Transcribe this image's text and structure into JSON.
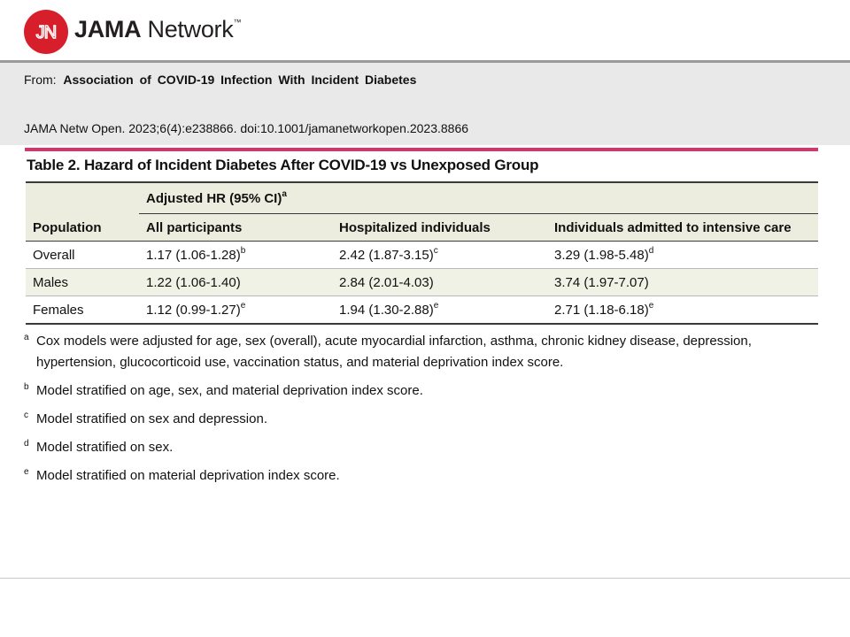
{
  "header": {
    "logo_glyph": "JN",
    "brand_bold": "JAMA",
    "brand_rest": "Network",
    "brand_tm": "™",
    "accent_color": "#d71f2c"
  },
  "citation": {
    "from_label": "From:",
    "article_title": "Association  of COVID-19 Infection With Incident Diabetes",
    "journal_ref": "JAMA Netw Open. 2023;6(4):e238866. doi:10.1001/jamanetworkopen.2023.8866"
  },
  "table": {
    "caption_label": "Table 2.",
    "caption_text": "Hazard of Incident Diabetes After COVID-19 vs Unexposed Group",
    "group_header": "Adjusted HR (95% CI)",
    "group_header_note": "a",
    "columns": [
      "Population",
      "All participants",
      "Hospitalized individuals",
      "Individuals admitted to intensive care"
    ],
    "rows": [
      {
        "population": "Overall",
        "all": "1.17 (1.06-1.28)",
        "all_note": "b",
        "hosp": "2.42 (1.87-3.15)",
        "hosp_note": "c",
        "icu": "3.29 (1.98-5.48)",
        "icu_note": "d"
      },
      {
        "population": "Males",
        "all": "1.22 (1.06-1.40)",
        "all_note": "",
        "hosp": "2.84 (2.01-4.03)",
        "hosp_note": "",
        "icu": "3.74 (1.97-7.07)",
        "icu_note": ""
      },
      {
        "population": "Females",
        "all": "1.12 (0.99-1.27)",
        "all_note": "e",
        "hosp": "1.94 (1.30-2.88)",
        "hosp_note": "e",
        "icu": "2.71 (1.18-6.18)",
        "icu_note": "e"
      }
    ]
  },
  "footnotes": [
    {
      "mark": "a",
      "line1": "Cox models were adjusted for age, sex (overall), acute myocardial infarction, asthma, chronic kidney disease, depression,",
      "line2": "hypertension, glucocorticoid use, vaccination status, and material deprivation index score."
    },
    {
      "mark": "b",
      "line1": "Model stratified on age, sex, and material deprivation index score.",
      "line2": ""
    },
    {
      "mark": "c",
      "line1": "Model stratified on sex and depression.",
      "line2": ""
    },
    {
      "mark": "d",
      "line1": "Model stratified on sex.",
      "line2": ""
    },
    {
      "mark": "e",
      "line1": "Model stratified on material deprivation index score.",
      "line2": ""
    }
  ]
}
